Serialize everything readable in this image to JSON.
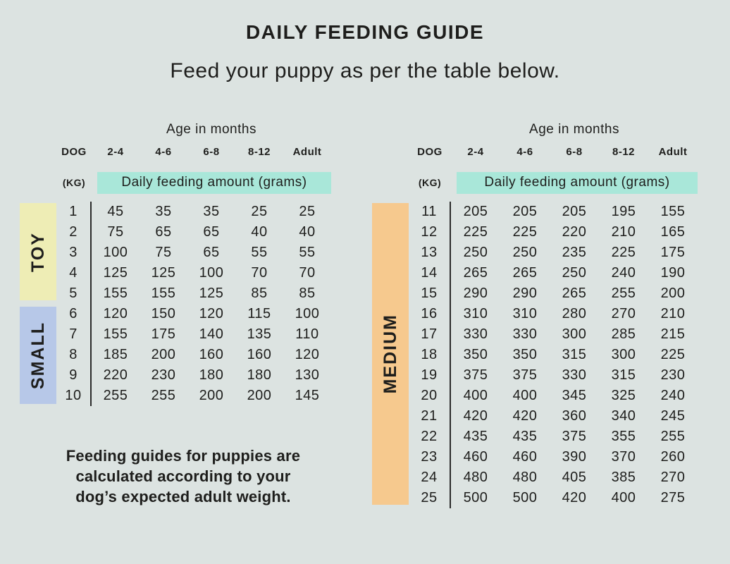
{
  "page": {
    "title": "DAILY FEEDING GUIDE",
    "subtitle": "Feed your puppy as per the table below.",
    "note_lines": [
      "Feeding guides for puppies are",
      "calculated according to your",
      "dog’s expected adult weight."
    ]
  },
  "colors": {
    "background": "#dce3e1",
    "text": "#1e1e1c",
    "divider_line": "#2b2b2b",
    "amount_banner_teal": "#a9e7d9",
    "toy_yellow": "#eeedb5",
    "small_blue": "#b7c8e8",
    "medium_orange": "#f6c98e"
  },
  "tables": {
    "age_axis_label": "Age in months",
    "weight_header_line1": "DOG",
    "weight_header_line2": "(KG)",
    "amount_header": "Daily feeding amount (grams)",
    "age_columns": [
      "2-4",
      "4-6",
      "6-8",
      "8-12",
      "Adult"
    ],
    "left": {
      "size_groups": [
        {
          "label": "TOY",
          "rows_span": 5,
          "color": "#eeedb5"
        },
        {
          "label": "SMALL",
          "rows_span": 5,
          "color": "#b7c8e8"
        }
      ],
      "rows": [
        {
          "kg": "1",
          "values": [
            "45",
            "35",
            "35",
            "25",
            "25"
          ]
        },
        {
          "kg": "2",
          "values": [
            "75",
            "65",
            "65",
            "40",
            "40"
          ]
        },
        {
          "kg": "3",
          "values": [
            "100",
            "75",
            "65",
            "55",
            "55"
          ]
        },
        {
          "kg": "4",
          "values": [
            "125",
            "125",
            "100",
            "70",
            "70"
          ]
        },
        {
          "kg": "5",
          "values": [
            "155",
            "155",
            "125",
            "85",
            "85"
          ]
        },
        {
          "kg": "6",
          "values": [
            "120",
            "150",
            "120",
            "115",
            "100"
          ]
        },
        {
          "kg": "7",
          "values": [
            "155",
            "175",
            "140",
            "135",
            "110"
          ]
        },
        {
          "kg": "8",
          "values": [
            "185",
            "200",
            "160",
            "160",
            "120"
          ]
        },
        {
          "kg": "9",
          "values": [
            "220",
            "230",
            "180",
            "180",
            "130"
          ]
        },
        {
          "kg": "10",
          "values": [
            "255",
            "255",
            "200",
            "200",
            "145"
          ]
        }
      ]
    },
    "right": {
      "size_groups": [
        {
          "label": "MEDIUM",
          "rows_span": 15,
          "color": "#f6c98e"
        }
      ],
      "rows": [
        {
          "kg": "11",
          "values": [
            "205",
            "205",
            "205",
            "195",
            "155"
          ]
        },
        {
          "kg": "12",
          "values": [
            "225",
            "225",
            "220",
            "210",
            "165"
          ]
        },
        {
          "kg": "13",
          "values": [
            "250",
            "250",
            "235",
            "225",
            "175"
          ]
        },
        {
          "kg": "14",
          "values": [
            "265",
            "265",
            "250",
            "240",
            "190"
          ]
        },
        {
          "kg": "15",
          "values": [
            "290",
            "290",
            "265",
            "255",
            "200"
          ]
        },
        {
          "kg": "16",
          "values": [
            "310",
            "310",
            "280",
            "270",
            "210"
          ]
        },
        {
          "kg": "17",
          "values": [
            "330",
            "330",
            "300",
            "285",
            "215"
          ]
        },
        {
          "kg": "18",
          "values": [
            "350",
            "350",
            "315",
            "300",
            "225"
          ]
        },
        {
          "kg": "19",
          "values": [
            "375",
            "375",
            "330",
            "315",
            "230"
          ]
        },
        {
          "kg": "20",
          "values": [
            "400",
            "400",
            "345",
            "325",
            "240"
          ]
        },
        {
          "kg": "21",
          "values": [
            "420",
            "420",
            "360",
            "340",
            "245"
          ]
        },
        {
          "kg": "22",
          "values": [
            "435",
            "435",
            "375",
            "355",
            "255"
          ]
        },
        {
          "kg": "23",
          "values": [
            "460",
            "460",
            "390",
            "370",
            "260"
          ]
        },
        {
          "kg": "24",
          "values": [
            "480",
            "480",
            "405",
            "385",
            "270"
          ]
        },
        {
          "kg": "25",
          "values": [
            "500",
            "500",
            "420",
            "400",
            "275"
          ]
        }
      ]
    }
  }
}
